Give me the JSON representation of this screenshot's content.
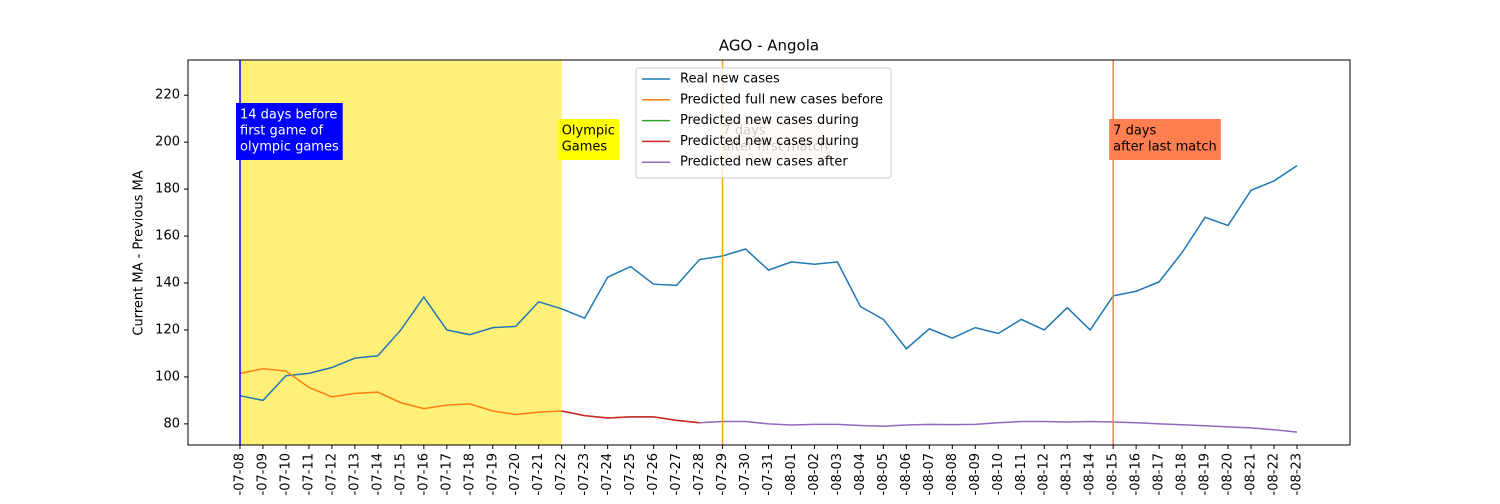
{
  "chart_data": {
    "type": "line",
    "title": "AGO - Angola",
    "y_label": "Current MA - Previous MA",
    "categories": [
      "-07-08",
      "-07-09",
      "-07-10",
      "-07-11",
      "-07-12",
      "-07-13",
      "-07-14",
      "-07-15",
      "-07-16",
      "-07-17",
      "-07-18",
      "-07-19",
      "-07-20",
      "-07-21",
      "-07-22",
      "-07-23",
      "-07-24",
      "-07-25",
      "-07-26",
      "-07-27",
      "-07-28",
      "-07-29",
      "-07-30",
      "-07-31",
      "-08-01",
      "-08-02",
      "-08-03",
      "-08-04",
      "-08-05",
      "-08-06",
      "-08-07",
      "-08-08",
      "-08-09",
      "-08-10",
      "-08-11",
      "-08-12",
      "-08-13",
      "-08-14",
      "-08-15",
      "-08-16",
      "-08-17",
      "-08-18",
      "-08-19",
      "-08-20",
      "-08-21",
      "-08-22",
      "-08-23"
    ],
    "series": [
      {
        "name": "Real new cases",
        "color": "#1f77b4",
        "values": [
          92,
          90,
          100.5,
          101.5,
          104,
          108,
          109,
          120,
          134,
          120,
          118,
          121,
          121.5,
          132,
          129,
          125,
          142.5,
          147,
          139.5,
          139,
          150,
          151.5,
          154.5,
          145.5,
          149,
          148,
          149,
          130,
          124.5,
          112,
          120.5,
          116.5,
          121,
          118.5,
          124.5,
          120,
          129.5,
          120,
          134.5,
          136.5,
          140.5,
          153,
          168,
          164.5,
          179.5,
          183.5,
          190
        ]
      },
      {
        "name": "Predicted full new cases before",
        "color": "#ff7f0e",
        "values": [
          101.5,
          103.5,
          102.5,
          95.5,
          91.5,
          93,
          93.5,
          89,
          86.5,
          88,
          88.5,
          85.5,
          84,
          85,
          85.5,
          null,
          null,
          null,
          null,
          null,
          null,
          null,
          null,
          null,
          null,
          null,
          null,
          null,
          null,
          null,
          null,
          null,
          null,
          null,
          null,
          null,
          null,
          null,
          null,
          null,
          null,
          null,
          null,
          null,
          null,
          null,
          null
        ]
      },
      {
        "name": "Predicted new cases during",
        "color": "#2ca02c",
        "values": [
          null,
          null,
          null,
          null,
          null,
          null,
          null,
          null,
          null,
          null,
          null,
          null,
          null,
          null,
          85.5,
          83.5,
          82.5,
          83,
          83,
          81.5,
          80.5,
          null,
          null,
          null,
          null,
          null,
          null,
          null,
          null,
          null,
          null,
          null,
          null,
          null,
          null,
          null,
          null,
          null,
          null,
          null,
          null,
          null,
          null,
          null,
          null,
          null,
          null
        ]
      },
      {
        "name": "Predicted new cases during",
        "color": "#d62728",
        "values": [
          null,
          null,
          null,
          null,
          null,
          null,
          null,
          null,
          null,
          null,
          null,
          null,
          null,
          null,
          85.5,
          83.5,
          82.5,
          83,
          83,
          81.5,
          80.5,
          null,
          null,
          null,
          null,
          null,
          null,
          null,
          null,
          null,
          null,
          null,
          null,
          null,
          null,
          null,
          null,
          null,
          null,
          null,
          null,
          null,
          null,
          null,
          null,
          null,
          null
        ]
      },
      {
        "name": "Predicted new cases after",
        "color": "#9467bd",
        "values": [
          null,
          null,
          null,
          null,
          null,
          null,
          null,
          null,
          null,
          null,
          null,
          null,
          null,
          null,
          null,
          null,
          null,
          null,
          null,
          null,
          80.5,
          81,
          81,
          80,
          79.5,
          79.8,
          79.8,
          79.3,
          79,
          79.5,
          79.8,
          79.7,
          79.8,
          80.5,
          81,
          81,
          80.8,
          81,
          80.8,
          80.5,
          80,
          79.6,
          79.2,
          78.7,
          78.3,
          77.5,
          76.5
        ]
      }
    ],
    "ylim": [
      71,
      235
    ],
    "yticks": [
      80,
      100,
      120,
      140,
      160,
      180,
      200,
      220
    ],
    "span": {
      "from": "-07-08",
      "to": "-07-22",
      "color": "#fff07a"
    },
    "vlines": [
      {
        "x": "-07-08",
        "color": "#0000ff"
      },
      {
        "x": "-07-29",
        "color": "#ffa500"
      },
      {
        "x": "-08-15",
        "color": "#ff7f50"
      }
    ],
    "annotations": [
      {
        "x": "-07-08",
        "lines": [
          "14 days before",
          "first game of",
          "olympic games"
        ],
        "color": "#0000ff",
        "text_color": "#ffffff"
      },
      {
        "x": "-07-22",
        "lines": [
          "Olympic",
          "Games"
        ],
        "color": "#ffff00",
        "text_color": "#000000"
      },
      {
        "x": "-07-29",
        "lines": [
          "7 days",
          "after first match"
        ],
        "color": "#ffe0b0",
        "text_color": "#000000"
      },
      {
        "x": "-08-15",
        "lines": [
          "7 days",
          "after last match"
        ],
        "color": "#ff7f50",
        "text_color": "#000000"
      }
    ],
    "legend": "upper center"
  }
}
